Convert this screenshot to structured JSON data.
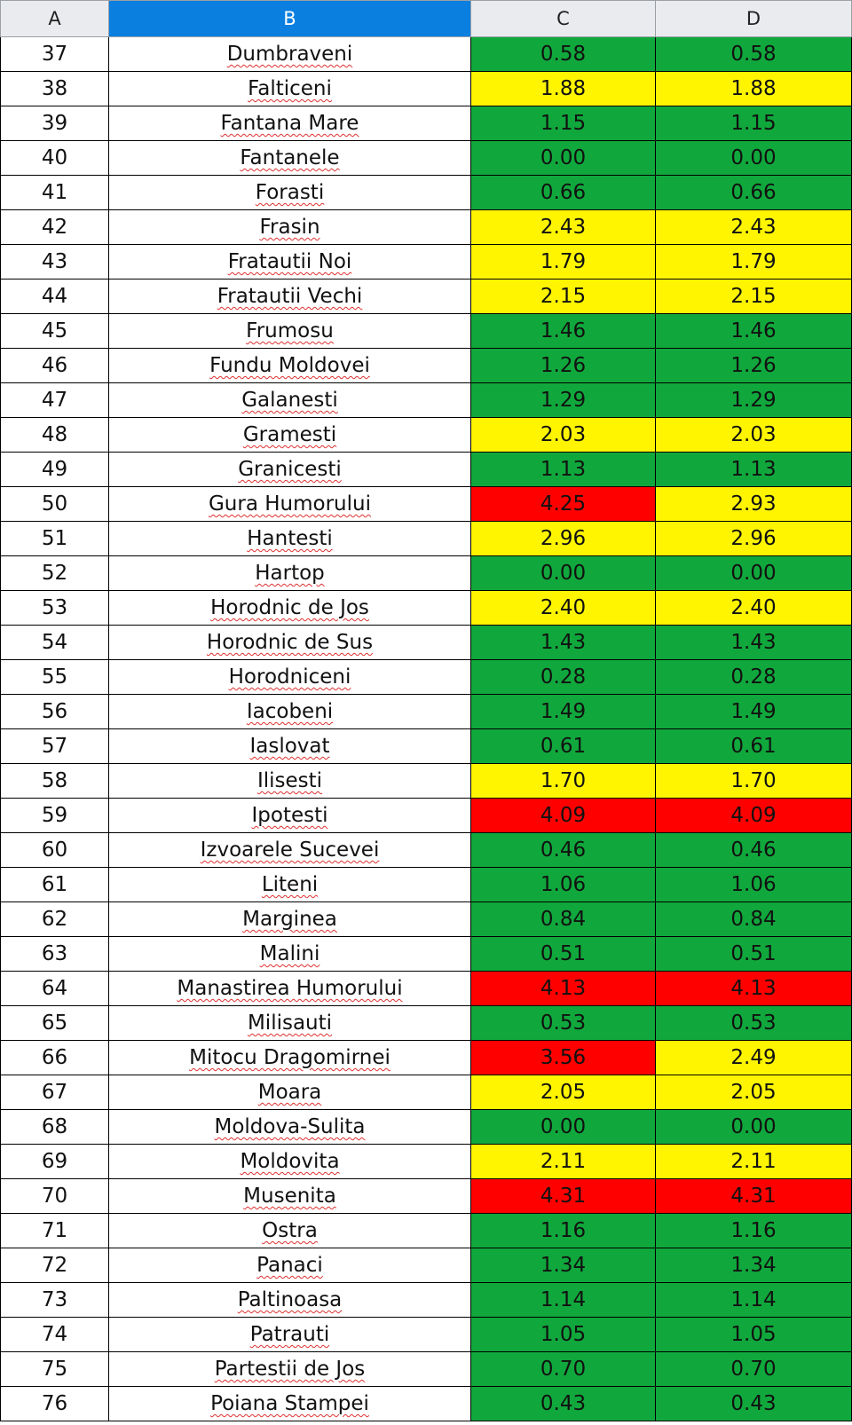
{
  "columns": [
    {
      "label": "A",
      "selected": false
    },
    {
      "label": "B",
      "selected": true
    },
    {
      "label": "C",
      "selected": false
    },
    {
      "label": "D",
      "selected": false
    }
  ],
  "colors": {
    "green": "#10a83c",
    "yellow": "#fff500",
    "red": "#ff0000",
    "selected_header": "#0a7fe0"
  },
  "rows": [
    {
      "n": "37",
      "name": "Dumbraveni",
      "c": "0.58",
      "cc": "g",
      "d": "0.58",
      "dc": "g"
    },
    {
      "n": "38",
      "name": "Falticeni",
      "c": "1.88",
      "cc": "y",
      "d": "1.88",
      "dc": "y"
    },
    {
      "n": "39",
      "name": "Fantana Mare",
      "c": "1.15",
      "cc": "g",
      "d": "1.15",
      "dc": "g"
    },
    {
      "n": "40",
      "name": "Fantanele",
      "c": "0.00",
      "cc": "g",
      "d": "0.00",
      "dc": "g"
    },
    {
      "n": "41",
      "name": "Forasti",
      "c": "0.66",
      "cc": "g",
      "d": "0.66",
      "dc": "g"
    },
    {
      "n": "42",
      "name": "Frasin",
      "c": "2.43",
      "cc": "y",
      "d": "2.43",
      "dc": "y"
    },
    {
      "n": "43",
      "name": "Fratautii Noi",
      "c": "1.79",
      "cc": "y",
      "d": "1.79",
      "dc": "y"
    },
    {
      "n": "44",
      "name": "Fratautii Vechi",
      "c": "2.15",
      "cc": "y",
      "d": "2.15",
      "dc": "y"
    },
    {
      "n": "45",
      "name": "Frumosu",
      "c": "1.46",
      "cc": "g",
      "d": "1.46",
      "dc": "g"
    },
    {
      "n": "46",
      "name": "Fundu Moldovei",
      "c": "1.26",
      "cc": "g",
      "d": "1.26",
      "dc": "g"
    },
    {
      "n": "47",
      "name": "Galanesti",
      "c": "1.29",
      "cc": "g",
      "d": "1.29",
      "dc": "g"
    },
    {
      "n": "48",
      "name": "Gramesti",
      "c": "2.03",
      "cc": "y",
      "d": "2.03",
      "dc": "y"
    },
    {
      "n": "49",
      "name": "Granicesti",
      "c": "1.13",
      "cc": "g",
      "d": "1.13",
      "dc": "g"
    },
    {
      "n": "50",
      "name": "Gura Humorului",
      "c": "4.25",
      "cc": "r",
      "d": "2.93",
      "dc": "y"
    },
    {
      "n": "51",
      "name": "Hantesti",
      "c": "2.96",
      "cc": "y",
      "d": "2.96",
      "dc": "y"
    },
    {
      "n": "52",
      "name": "Hartop",
      "c": "0.00",
      "cc": "g",
      "d": "0.00",
      "dc": "g"
    },
    {
      "n": "53",
      "name": "Horodnic de Jos",
      "c": "2.40",
      "cc": "y",
      "d": "2.40",
      "dc": "y"
    },
    {
      "n": "54",
      "name": "Horodnic de Sus",
      "c": "1.43",
      "cc": "g",
      "d": "1.43",
      "dc": "g"
    },
    {
      "n": "55",
      "name": "Horodniceni",
      "c": "0.28",
      "cc": "g",
      "d": "0.28",
      "dc": "g"
    },
    {
      "n": "56",
      "name": "Iacobeni",
      "c": "1.49",
      "cc": "g",
      "d": "1.49",
      "dc": "g"
    },
    {
      "n": "57",
      "name": "Iaslovat",
      "c": "0.61",
      "cc": "g",
      "d": "0.61",
      "dc": "g"
    },
    {
      "n": "58",
      "name": "Ilisesti",
      "c": "1.70",
      "cc": "y",
      "d": "1.70",
      "dc": "y"
    },
    {
      "n": "59",
      "name": "Ipotesti",
      "c": "4.09",
      "cc": "r",
      "d": "4.09",
      "dc": "r"
    },
    {
      "n": "60",
      "name": "Izvoarele Sucevei",
      "c": "0.46",
      "cc": "g",
      "d": "0.46",
      "dc": "g"
    },
    {
      "n": "61",
      "name": "Liteni",
      "c": "1.06",
      "cc": "g",
      "d": "1.06",
      "dc": "g"
    },
    {
      "n": "62",
      "name": "Marginea",
      "c": "0.84",
      "cc": "g",
      "d": "0.84",
      "dc": "g"
    },
    {
      "n": "63",
      "name": "Malini",
      "c": "0.51",
      "cc": "g",
      "d": "0.51",
      "dc": "g"
    },
    {
      "n": "64",
      "name": "Manastirea Humorului",
      "c": "4.13",
      "cc": "r",
      "d": "4.13",
      "dc": "r"
    },
    {
      "n": "65",
      "name": "Milisauti",
      "c": "0.53",
      "cc": "g",
      "d": "0.53",
      "dc": "g"
    },
    {
      "n": "66",
      "name": "Mitocu Dragomirnei",
      "c": "3.56",
      "cc": "r",
      "d": "2.49",
      "dc": "y"
    },
    {
      "n": "67",
      "name": "Moara",
      "c": "2.05",
      "cc": "y",
      "d": "2.05",
      "dc": "y"
    },
    {
      "n": "68",
      "name": "Moldova-Sulita",
      "c": "0.00",
      "cc": "g",
      "d": "0.00",
      "dc": "g"
    },
    {
      "n": "69",
      "name": "Moldovita",
      "c": "2.11",
      "cc": "y",
      "d": "2.11",
      "dc": "y"
    },
    {
      "n": "70",
      "name": "Musenita",
      "c": "4.31",
      "cc": "r",
      "d": "4.31",
      "dc": "r"
    },
    {
      "n": "71",
      "name": "Ostra",
      "c": "1.16",
      "cc": "g",
      "d": "1.16",
      "dc": "g"
    },
    {
      "n": "72",
      "name": "Panaci",
      "c": "1.34",
      "cc": "g",
      "d": "1.34",
      "dc": "g"
    },
    {
      "n": "73",
      "name": "Paltinoasa",
      "c": "1.14",
      "cc": "g",
      "d": "1.14",
      "dc": "g"
    },
    {
      "n": "74",
      "name": "Patrauti",
      "c": "1.05",
      "cc": "g",
      "d": "1.05",
      "dc": "g"
    },
    {
      "n": "75",
      "name": "Partestii de Jos",
      "c": "0.70",
      "cc": "g",
      "d": "0.70",
      "dc": "g"
    },
    {
      "n": "76",
      "name": "Poiana Stampei",
      "c": "0.43",
      "cc": "g",
      "d": "0.43",
      "dc": "g"
    }
  ]
}
